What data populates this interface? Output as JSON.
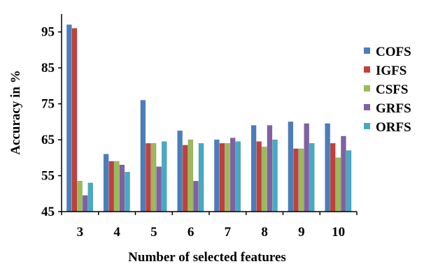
{
  "chart_data": {
    "type": "bar",
    "title": "",
    "xlabel": "Number of selected features",
    "ylabel": "Accuracy in %",
    "ylim": [
      45,
      100
    ],
    "yticks": [
      45,
      55,
      65,
      75,
      85,
      95
    ],
    "categories": [
      "3",
      "4",
      "5",
      "6",
      "7",
      "8",
      "9",
      "10"
    ],
    "grid": false,
    "legend_position": "right",
    "series": [
      {
        "name": "COFS",
        "color": "#4a7ebb",
        "values": [
          97,
          61,
          76,
          67.5,
          65,
          69,
          70,
          69.5
        ]
      },
      {
        "name": "IGFS",
        "color": "#c0403d",
        "values": [
          96,
          59,
          64,
          63.5,
          64,
          64.5,
          62.5,
          64
        ]
      },
      {
        "name": "CSFS",
        "color": "#9bbb59",
        "values": [
          53.5,
          59,
          64,
          65,
          64,
          63,
          62.5,
          60
        ]
      },
      {
        "name": "GRFS",
        "color": "#7f61a3",
        "values": [
          49.5,
          58,
          57.5,
          53.5,
          65.5,
          69,
          69.5,
          66
        ]
      },
      {
        "name": "ORFS",
        "color": "#46aac5",
        "values": [
          53,
          56,
          64.5,
          64,
          64.5,
          65,
          64,
          62
        ]
      }
    ]
  }
}
